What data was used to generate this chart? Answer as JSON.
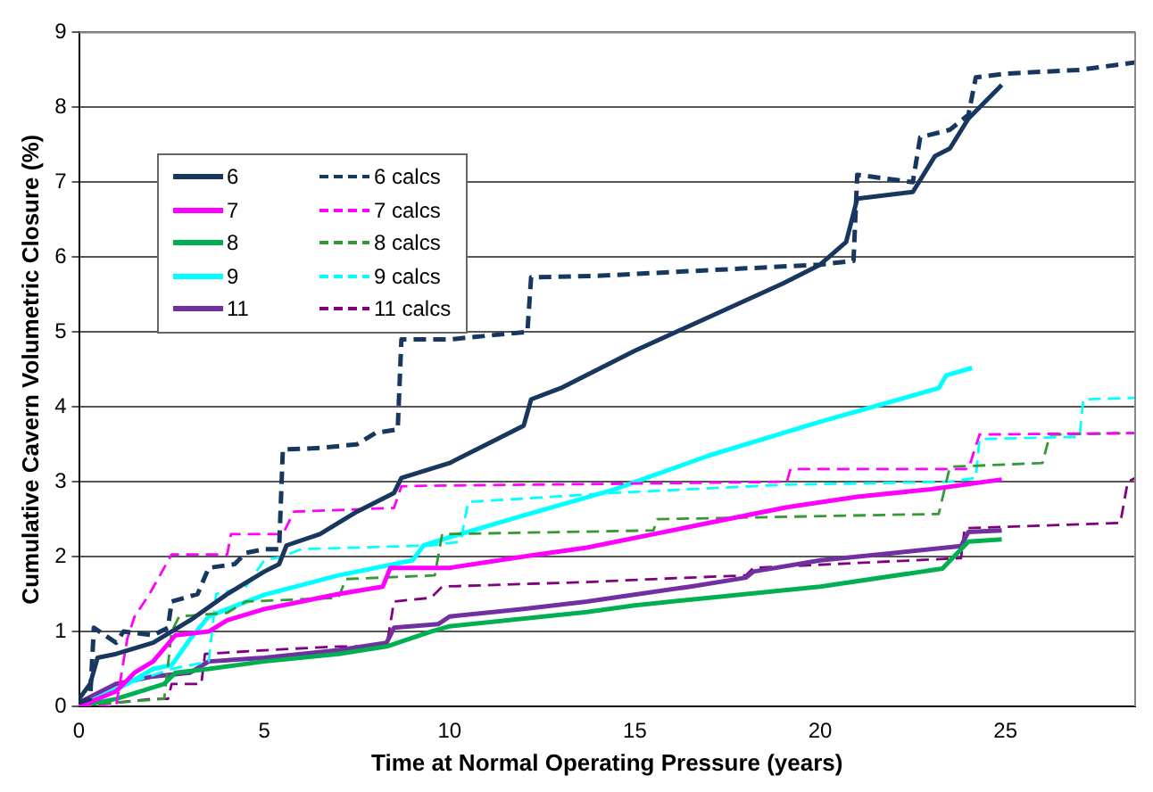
{
  "chart_data": {
    "type": "line",
    "xlabel": "Time at Normal Operating Pressure (years)",
    "ylabel": "Cumulative Cavern Volumetric Closure (%)",
    "xlim": [
      0,
      28.5
    ],
    "xticks": [
      0,
      5,
      10,
      15,
      20,
      25
    ],
    "ylim": [
      0,
      9
    ],
    "yticks": [
      0,
      1,
      2,
      3,
      4,
      5,
      6,
      7,
      8,
      9
    ],
    "grid": "y",
    "legend": "top left",
    "marker": "none",
    "series": [
      {
        "name": "6",
        "color": "#17375e",
        "line_style": "solid",
        "x": [
          0,
          0.3,
          0.5,
          1,
          2,
          3,
          4,
          5,
          5.4,
          5.6,
          6.5,
          7.5,
          8.5,
          8.7,
          10,
          11,
          12,
          12.2,
          13,
          15,
          17,
          19,
          20,
          20.7,
          21,
          22.5,
          23.1,
          23.5,
          24,
          24.9
        ],
        "values": [
          0.1,
          0.3,
          0.65,
          0.7,
          0.85,
          1.15,
          1.5,
          1.8,
          1.9,
          2.15,
          2.3,
          2.6,
          2.85,
          3.05,
          3.25,
          3.5,
          3.75,
          4.1,
          4.25,
          4.75,
          5.2,
          5.65,
          5.9,
          6.2,
          6.78,
          6.87,
          7.35,
          7.45,
          7.85,
          8.3
        ]
      },
      {
        "name": "6 calcs",
        "color": "#17375e",
        "line_style": "dashed",
        "x": [
          0,
          0.3,
          0.4,
          0.7,
          1,
          1.2,
          2,
          2.4,
          2.5,
          3.2,
          3.5,
          4.2,
          4.5,
          5,
          5.4,
          5.5,
          6.5,
          7.5,
          8,
          8.6,
          8.7,
          10,
          11,
          12.1,
          12.2,
          14,
          16,
          18,
          20,
          20.9,
          21,
          22.5,
          22.7,
          23.5,
          24,
          24.2,
          25,
          27,
          28.5
        ],
        "values": [
          0.05,
          0.1,
          1.05,
          0.95,
          0.85,
          1.0,
          0.95,
          1.05,
          1.4,
          1.5,
          1.85,
          1.9,
          2.05,
          2.1,
          2.1,
          3.43,
          3.45,
          3.5,
          3.65,
          3.7,
          4.9,
          4.9,
          4.95,
          5.0,
          5.73,
          5.75,
          5.8,
          5.85,
          5.9,
          5.95,
          7.1,
          7.0,
          7.6,
          7.7,
          7.9,
          8.4,
          8.45,
          8.5,
          8.6
        ]
      },
      {
        "name": "7",
        "color": "#ff00ff",
        "line_style": "solid",
        "x": [
          0,
          1,
          1.5,
          2,
          2.6,
          3.5,
          4,
          5,
          6,
          7,
          8.2,
          8.4,
          10,
          12,
          13.7,
          17,
          19.1,
          21,
          23,
          24.9
        ],
        "values": [
          0,
          0.2,
          0.45,
          0.6,
          0.95,
          1.0,
          1.15,
          1.3,
          1.4,
          1.5,
          1.6,
          1.85,
          1.85,
          2.0,
          2.12,
          2.45,
          2.66,
          2.8,
          2.9,
          3.03
        ]
      },
      {
        "name": "7 calcs",
        "color": "#ff00ff",
        "line_style": "dashed",
        "x": [
          0,
          1,
          1.3,
          1.5,
          1.9,
          2.5,
          4,
          4.1,
          5.5,
          5.8,
          8.5,
          8.7,
          10,
          14,
          19.1,
          19.2,
          24,
          24.3,
          28.5
        ],
        "values": [
          0,
          0,
          0.9,
          1.2,
          1.5,
          2.03,
          2.03,
          2.3,
          2.3,
          2.6,
          2.65,
          2.94,
          2.95,
          2.97,
          3.0,
          3.17,
          3.17,
          3.63,
          3.65
        ]
      },
      {
        "name": "8",
        "color": "#00b050",
        "line_style": "solid",
        "x": [
          0,
          1,
          2.3,
          2.6,
          3.5,
          5,
          7,
          8.3,
          9.5,
          10,
          13.7,
          15,
          17,
          20,
          23.3,
          24,
          24.9
        ],
        "values": [
          0,
          0.1,
          0.3,
          0.45,
          0.5,
          0.6,
          0.7,
          0.8,
          1.0,
          1.07,
          1.26,
          1.35,
          1.45,
          1.6,
          1.84,
          2.2,
          2.23
        ]
      },
      {
        "name": "8 calcs",
        "color": "#339933",
        "line_style": "dashed",
        "x": [
          0,
          1,
          2.3,
          2.5,
          2.7,
          4,
          4.5,
          7,
          7.2,
          9.6,
          9.8,
          15.5,
          15.6,
          23.2,
          23.5,
          26,
          26.2,
          28.5
        ],
        "values": [
          0,
          0.05,
          0.1,
          1.0,
          1.2,
          1.25,
          1.4,
          1.45,
          1.7,
          1.75,
          2.3,
          2.35,
          2.5,
          2.57,
          3.2,
          3.25,
          3.63,
          3.65
        ]
      },
      {
        "name": "9",
        "color": "#00ffff",
        "line_style": "solid",
        "x": [
          0,
          1.3,
          2,
          2.5,
          3,
          3.5,
          4,
          5,
          7,
          9,
          9.3,
          10,
          12,
          14.4,
          17,
          20,
          23.2,
          23.4,
          24.1
        ],
        "values": [
          0,
          0.3,
          0.5,
          0.55,
          0.9,
          1.2,
          1.3,
          1.49,
          1.75,
          1.95,
          2.15,
          2.26,
          2.55,
          2.89,
          3.35,
          3.8,
          4.25,
          4.42,
          4.52
        ]
      },
      {
        "name": "9 calcs",
        "color": "#00ffff",
        "line_style": "dashed",
        "x": [
          0,
          1.3,
          2.5,
          3.5,
          3.7,
          4.5,
          5,
          5.5,
          6,
          9.5,
          10.3,
          10.5,
          14.4,
          19,
          23.5,
          24.2,
          24.3,
          27,
          27.1,
          28.5
        ],
        "values": [
          0,
          0.3,
          0.5,
          0.6,
          1.5,
          1.6,
          1.95,
          2.0,
          2.1,
          2.15,
          2.2,
          2.73,
          2.85,
          2.96,
          3.0,
          3.05,
          3.57,
          3.6,
          4.1,
          4.12
        ]
      },
      {
        "name": "11",
        "color": "#7030a0",
        "line_style": "solid",
        "x": [
          0,
          1,
          2,
          3,
          3.5,
          5,
          7,
          8.3,
          8.5,
          9.7,
          10,
          12,
          13.7,
          16.5,
          18,
          18.2,
          20,
          22,
          23.8,
          24,
          24.9
        ],
        "values": [
          0.05,
          0.3,
          0.4,
          0.45,
          0.6,
          0.65,
          0.75,
          0.85,
          1.05,
          1.1,
          1.2,
          1.3,
          1.4,
          1.6,
          1.72,
          1.8,
          1.95,
          2.05,
          2.14,
          2.33,
          2.35
        ]
      },
      {
        "name": "11 calcs",
        "color": "#800080",
        "line_style": "dashed",
        "x": [
          0,
          2,
          2.4,
          2.5,
          3.3,
          3.4,
          5,
          7,
          8.3,
          8.5,
          9.5,
          9.8,
          13.7,
          15.5,
          18,
          18.2,
          23.8,
          23.9,
          28.1,
          28.3,
          28.5
        ],
        "values": [
          0,
          0.1,
          0.1,
          0.3,
          0.3,
          0.7,
          0.75,
          0.8,
          0.8,
          1.4,
          1.45,
          1.6,
          1.66,
          1.7,
          1.75,
          1.85,
          1.98,
          2.38,
          2.45,
          3.0,
          3.05
        ]
      }
    ]
  }
}
